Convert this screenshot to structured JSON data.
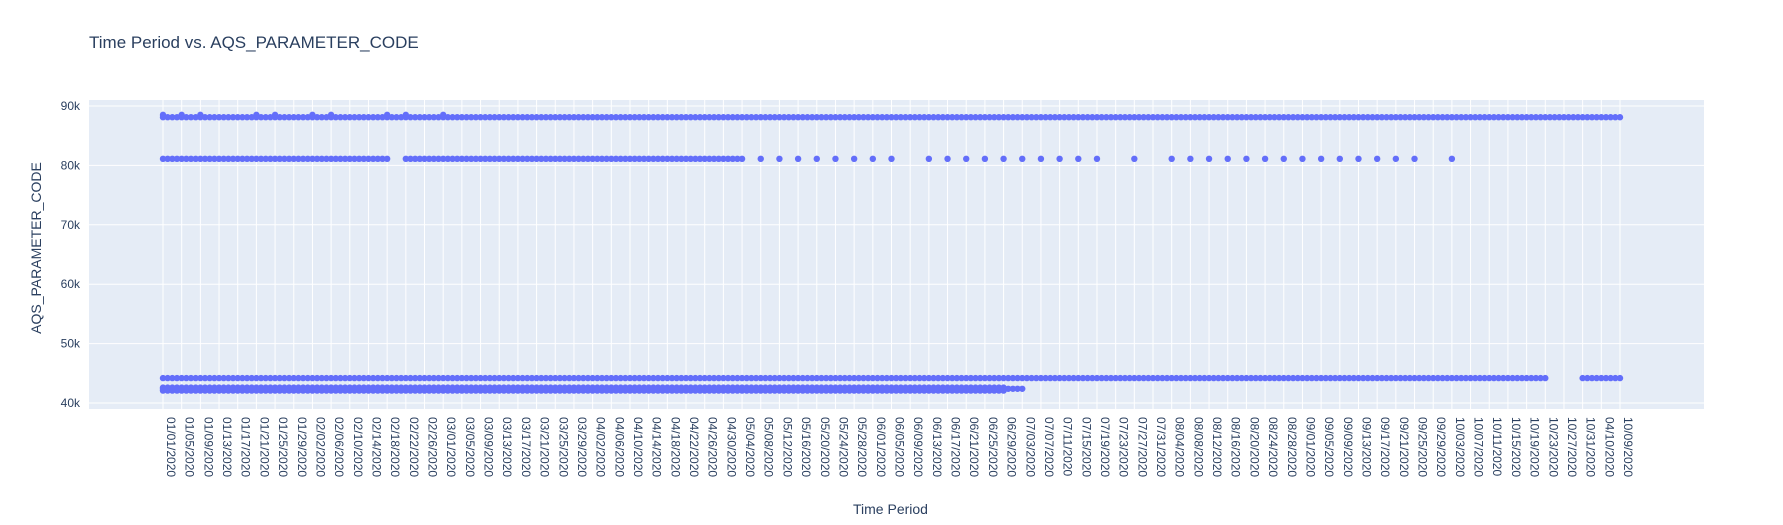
{
  "chart_data": {
    "type": "scatter",
    "title": "Time Period vs. AQS_PARAMETER_CODE",
    "xlabel": "Time Period",
    "ylabel": "AQS_PARAMETER_CODE",
    "ylim": [
      39000,
      91000
    ],
    "y_ticks": [
      40000,
      50000,
      60000,
      70000,
      80000,
      90000
    ],
    "y_tick_labels": [
      "40k",
      "50k",
      "60k",
      "70k",
      "80k",
      "90k"
    ],
    "x_categories": [
      "01/01/2020",
      "01/05/2020",
      "01/09/2020",
      "01/13/2020",
      "01/17/2020",
      "01/21/2020",
      "01/25/2020",
      "01/29/2020",
      "02/02/2020",
      "02/06/2020",
      "02/10/2020",
      "02/14/2020",
      "02/18/2020",
      "02/22/2020",
      "02/26/2020",
      "03/01/2020",
      "03/05/2020",
      "03/09/2020",
      "03/13/2020",
      "03/17/2020",
      "03/21/2020",
      "03/25/2020",
      "03/29/2020",
      "04/02/2020",
      "04/06/2020",
      "04/10/2020",
      "04/14/2020",
      "04/18/2020",
      "04/22/2020",
      "04/26/2020",
      "04/30/2020",
      "05/04/2020",
      "05/08/2020",
      "05/12/2020",
      "05/16/2020",
      "05/20/2020",
      "05/24/2020",
      "05/28/2020",
      "06/01/2020",
      "06/05/2020",
      "06/09/2020",
      "06/13/2020",
      "06/17/2020",
      "06/21/2020",
      "06/25/2020",
      "06/29/2020",
      "07/03/2020",
      "07/07/2020",
      "07/11/2020",
      "07/15/2020",
      "07/19/2020",
      "07/23/2020",
      "07/27/2020",
      "07/31/2020",
      "08/04/2020",
      "08/08/2020",
      "08/12/2020",
      "08/16/2020",
      "08/20/2020",
      "08/24/2020",
      "08/28/2020",
      "09/01/2020",
      "09/05/2020",
      "09/09/2020",
      "09/13/2020",
      "09/17/2020",
      "09/21/2020",
      "09/25/2020",
      "09/29/2020",
      "10/03/2020",
      "10/07/2020",
      "10/11/2020",
      "10/15/2020",
      "10/19/2020",
      "10/23/2020",
      "10/27/2020",
      "10/31/2020",
      "04/10/2020",
      "10/09/2020"
    ],
    "marker_color": "#636efa",
    "grid": true,
    "plot_bgcolor": "#e5ecf6",
    "series": [
      {
        "values": [
          {
            "x_from": "01/01/2020",
            "x_to": "10/09/2020",
            "y": 88101
          },
          {
            "x_from": "01/01/2020",
            "x_to": "02/18/2020",
            "y": 81102
          },
          {
            "x_from": "02/22/2020",
            "x_to": "05/04/2020",
            "y": 81102
          },
          {
            "x_from": "01/01/2020",
            "x_to": "10/23/2020",
            "y": 44201
          },
          {
            "x_from": "10/31/2020",
            "x_to": "10/09/2020",
            "y": 44201
          },
          {
            "x_from": "01/01/2020",
            "x_to": "07/03/2020",
            "y": 42401
          },
          {
            "x_from": "01/01/2020",
            "x_to": "06/29/2020",
            "y": 42101
          },
          {
            "x_from": "01/01/2020",
            "x_to": "06/29/2020",
            "y": 42602
          },
          {
            "x_from": "10/31/2020",
            "x_to": "04/10/2020",
            "y": 42401
          },
          {
            "x_from": "10/31/2020",
            "x_to": "04/10/2020",
            "y": 42101
          },
          {
            "x_from": "10/31/2020",
            "x_to": "04/10/2020",
            "y": 42602
          },
          {
            "x_from": "10/31/2020",
            "x_to": "04/10/2020",
            "y": 81102
          },
          {
            "x": "01/01/2020",
            "y": 88502
          },
          {
            "x": "01/05/2020",
            "y": 88502
          },
          {
            "x": "01/09/2020",
            "y": 88502
          },
          {
            "x": "01/21/2020",
            "y": 88502
          },
          {
            "x": "01/25/2020",
            "y": 88502
          },
          {
            "x": "02/02/2020",
            "y": 88502
          },
          {
            "x": "02/06/2020",
            "y": 88502
          },
          {
            "x": "02/18/2020",
            "y": 88502
          },
          {
            "x": "02/22/2020",
            "y": 88502
          },
          {
            "x": "03/01/2020",
            "y": 88502
          },
          {
            "x": "05/08/2020",
            "y": 81102
          },
          {
            "x": "05/12/2020",
            "y": 81102
          },
          {
            "x": "05/16/2020",
            "y": 81102
          },
          {
            "x": "05/20/2020",
            "y": 81102
          },
          {
            "x": "05/24/2020",
            "y": 81102
          },
          {
            "x": "05/28/2020",
            "y": 81102
          },
          {
            "x": "06/01/2020",
            "y": 81102
          },
          {
            "x": "06/05/2020",
            "y": 81102
          },
          {
            "x": "06/13/2020",
            "y": 81102
          },
          {
            "x": "06/17/2020",
            "y": 81102
          },
          {
            "x": "06/21/2020",
            "y": 81102
          },
          {
            "x": "06/25/2020",
            "y": 81102
          },
          {
            "x": "06/29/2020",
            "y": 81102
          },
          {
            "x": "07/03/2020",
            "y": 81102
          },
          {
            "x": "07/07/2020",
            "y": 81102
          },
          {
            "x": "07/11/2020",
            "y": 81102
          },
          {
            "x": "07/15/2020",
            "y": 81102
          },
          {
            "x": "07/19/2020",
            "y": 81102
          },
          {
            "x": "07/27/2020",
            "y": 81102
          },
          {
            "x": "08/04/2020",
            "y": 81102
          },
          {
            "x": "08/08/2020",
            "y": 81102
          },
          {
            "x": "08/12/2020",
            "y": 81102
          },
          {
            "x": "08/16/2020",
            "y": 81102
          },
          {
            "x": "08/20/2020",
            "y": 81102
          },
          {
            "x": "08/24/2020",
            "y": 81102
          },
          {
            "x": "08/28/2020",
            "y": 81102
          },
          {
            "x": "09/01/2020",
            "y": 81102
          },
          {
            "x": "09/05/2020",
            "y": 81102
          },
          {
            "x": "09/09/2020",
            "y": 81102
          },
          {
            "x": "09/13/2020",
            "y": 81102
          },
          {
            "x": "09/17/2020",
            "y": 81102
          },
          {
            "x": "09/21/2020",
            "y": 81102
          },
          {
            "x": "09/25/2020",
            "y": 81102
          },
          {
            "x": "10/03/2020",
            "y": 81102
          }
        ]
      }
    ]
  }
}
